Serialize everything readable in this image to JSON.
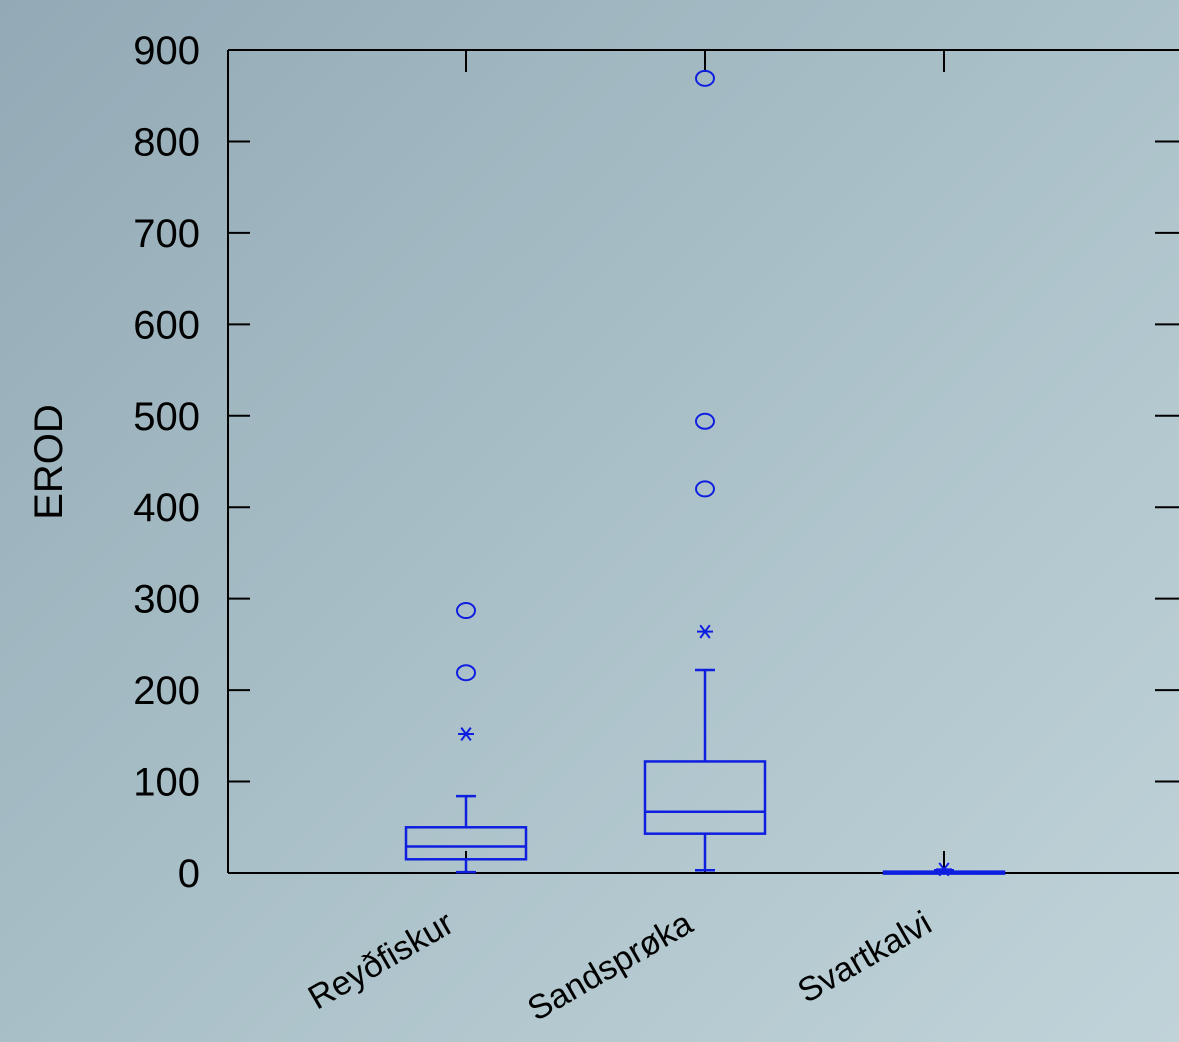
{
  "chart_data": {
    "type": "boxplot",
    "title": "",
    "xlabel": "",
    "ylabel": "EROD",
    "ylim": [
      0,
      900
    ],
    "yticks": [
      "0",
      "100",
      "200",
      "300",
      "400",
      "500",
      "600",
      "700",
      "800",
      "900"
    ],
    "categories": [
      "Reyðfiskur",
      "Sandsprøka",
      "Svartkalvi"
    ],
    "series": [
      {
        "category": "Reyðfiskur",
        "min": 1,
        "q1": 15,
        "median": 29,
        "q3": 50,
        "max": 84,
        "outliers_star": [
          152
        ],
        "outliers_circle": [
          219,
          287
        ]
      },
      {
        "category": "Sandsprøka",
        "min": 3,
        "q1": 43,
        "median": 67,
        "q3": 122,
        "max": 222,
        "outliers_star": [
          264
        ],
        "outliers_circle": [
          420,
          494,
          869
        ]
      },
      {
        "category": "Svartkalvi",
        "min": 0,
        "q1": 0.3,
        "median": 1,
        "q3": 1.5,
        "max": 3,
        "outliers_star": [
          4
        ],
        "outliers_circle": []
      }
    ],
    "colors": {
      "box": "#0f1fe0",
      "axis": "#000000",
      "text": "#000000"
    },
    "grid": false,
    "legend": "none"
  }
}
